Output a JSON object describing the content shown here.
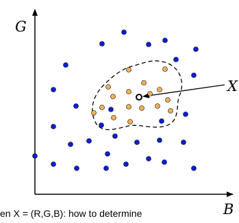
{
  "diagram": {
    "y_axis_label": "G",
    "x_axis_label": "B",
    "query_label": "X",
    "colors": {
      "class_blue": "#0a1fd6",
      "class_orange": "#f4b15a",
      "outline": "#000000",
      "background": "#ffffff"
    }
  },
  "caption": "en X = (R,G,B): how to determine"
}
